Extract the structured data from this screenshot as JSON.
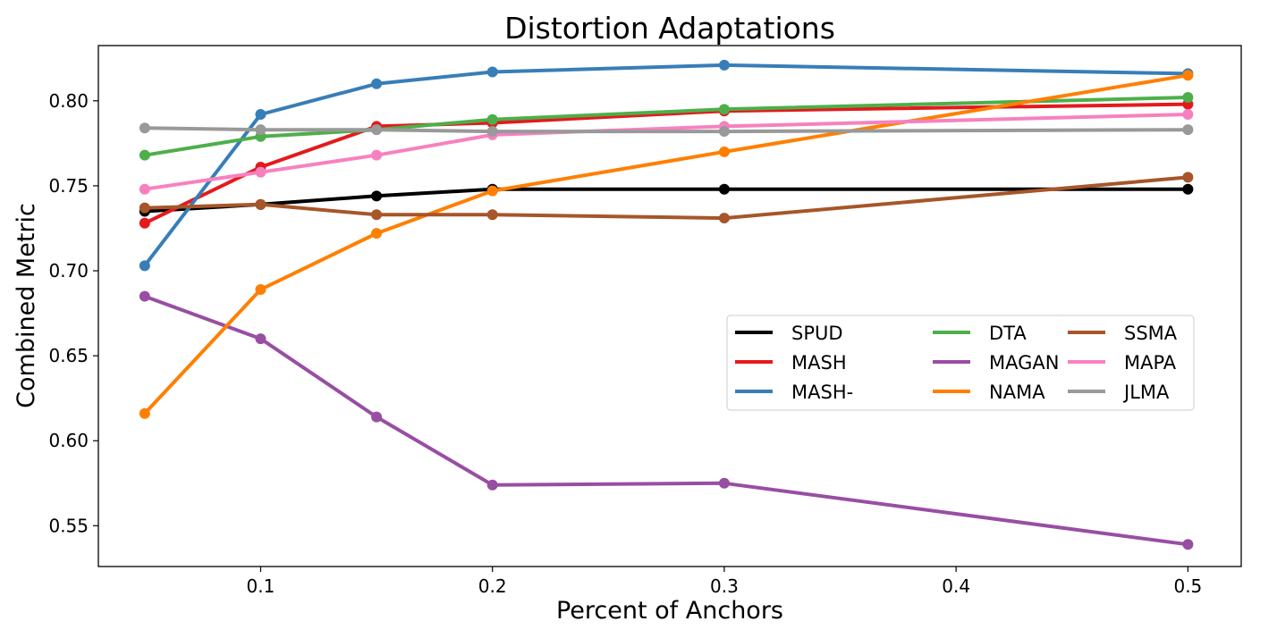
{
  "chart_data": {
    "type": "line",
    "title": "Distortion Adaptations",
    "xlabel": "Percent of Anchors",
    "ylabel": "Combined Metric",
    "xlim": [
      0.03,
      0.523
    ],
    "ylim": [
      0.526,
      0.8325
    ],
    "x_ticks": [
      0.1,
      0.2,
      0.3,
      0.4,
      0.5
    ],
    "x_tick_labels": [
      "0.1",
      "0.2",
      "0.3",
      "0.4",
      "0.5"
    ],
    "y_ticks": [
      0.55,
      0.6,
      0.65,
      0.7,
      0.75,
      0.8
    ],
    "y_tick_labels": [
      "0.55",
      "0.60",
      "0.65",
      "0.70",
      "0.75",
      "0.80"
    ],
    "x": [
      0.05,
      0.1,
      0.15,
      0.2,
      0.3,
      0.5
    ],
    "grid": false,
    "legend_position": "center-right",
    "legend_columns": 3,
    "series": [
      {
        "name": "SPUD",
        "color": "#000000",
        "values": [
          0.735,
          0.739,
          0.744,
          0.748,
          0.748,
          0.748
        ]
      },
      {
        "name": "MASH",
        "color": "#e41a1c",
        "values": [
          0.728,
          0.761,
          0.785,
          0.787,
          0.794,
          0.798
        ]
      },
      {
        "name": "MASH-",
        "color": "#377eb8",
        "values": [
          0.703,
          0.792,
          0.81,
          0.817,
          0.821,
          0.816
        ]
      },
      {
        "name": "DTA",
        "color": "#4daf4a",
        "values": [
          0.768,
          0.779,
          0.783,
          0.789,
          0.795,
          0.802
        ]
      },
      {
        "name": "MAGAN",
        "color": "#984ea3",
        "values": [
          0.685,
          0.66,
          0.614,
          0.574,
          0.575,
          0.539
        ]
      },
      {
        "name": "NAMA",
        "color": "#ff7f00",
        "values": [
          0.616,
          0.689,
          0.722,
          0.747,
          0.77,
          0.815
        ]
      },
      {
        "name": "SSMA",
        "color": "#a65628",
        "values": [
          0.737,
          0.739,
          0.733,
          0.733,
          0.731,
          0.755
        ]
      },
      {
        "name": "MAPA",
        "color": "#f781bf",
        "values": [
          0.748,
          0.758,
          0.768,
          0.78,
          0.785,
          0.792
        ]
      },
      {
        "name": "JLMA",
        "color": "#999999",
        "values": [
          0.784,
          0.783,
          0.783,
          0.782,
          0.782,
          0.783
        ]
      }
    ]
  }
}
